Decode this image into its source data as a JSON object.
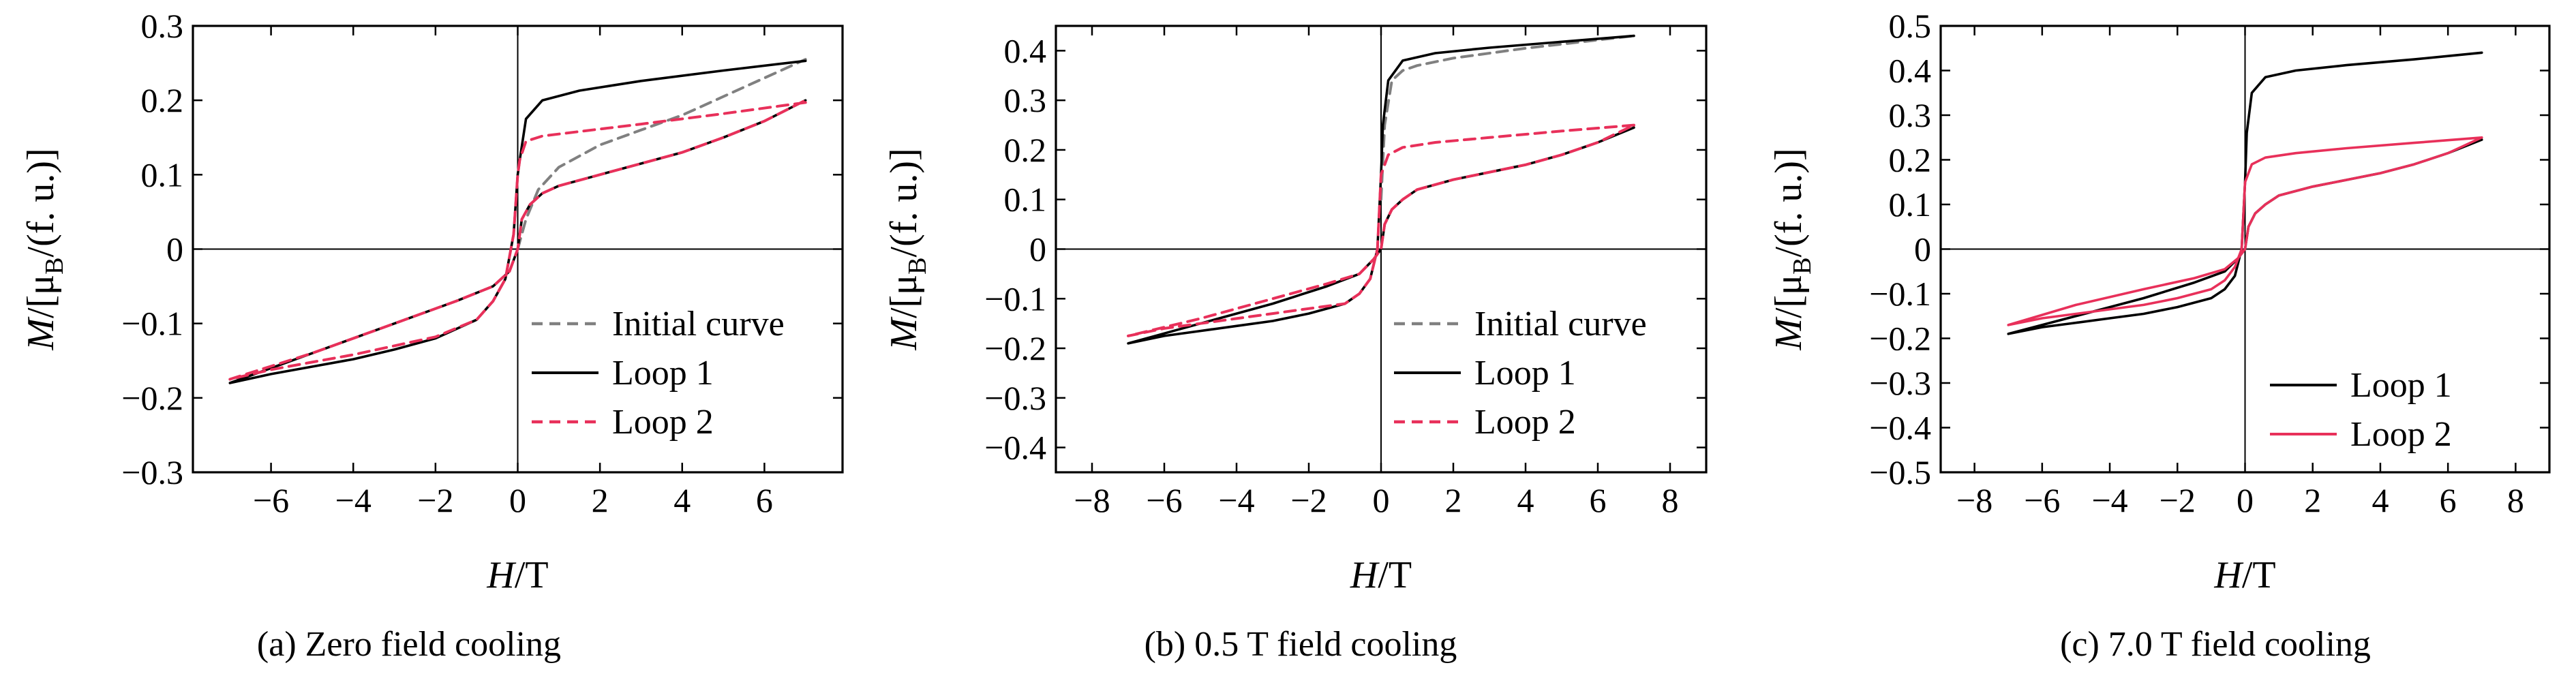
{
  "figure": {
    "colors": {
      "initial": "#808080",
      "loop1": "#000000",
      "loop2": "#e8305a"
    }
  },
  "chart_data": [
    {
      "type": "line",
      "caption": "(a) Zero field cooling",
      "xlabel_main": "H",
      "xlabel_unit": "/T",
      "ylabel_main": "M",
      "ylabel_unit": "/[μ",
      "ylabel_sub": "B",
      "ylabel_tail": "/(f. u.)]",
      "xlim": [
        -7.9,
        7.9
      ],
      "ylim": [
        -0.3,
        0.3
      ],
      "xticks": [
        -6,
        -4,
        -2,
        0,
        2,
        4,
        6
      ],
      "xtick_labels": [
        "−6",
        "−4",
        "−2",
        "0",
        "2",
        "4",
        "6"
      ],
      "yticks": [
        -0.3,
        -0.2,
        -0.1,
        0,
        0.1,
        0.2,
        0.3
      ],
      "ytick_labels": [
        "−0.3",
        "−0.2",
        "−0.1",
        "0",
        "0.1",
        "0.2",
        "0.3"
      ],
      "legend_position": "bottom-right",
      "legend_entries": [
        "Initial curve",
        "Loop 1",
        "Loop 2"
      ],
      "series": [
        {
          "name": "Initial curve",
          "style": "dashed",
          "color": "#808080",
          "x": [
            0,
            0.2,
            0.5,
            1,
            2,
            3,
            4,
            5,
            6,
            7
          ],
          "y": [
            0,
            0.04,
            0.08,
            0.11,
            0.14,
            0.16,
            0.18,
            0.205,
            0.23,
            0.255
          ]
        },
        {
          "name": "Loop 1",
          "style": "solid",
          "color": "#000000",
          "x": [
            7,
            5,
            3,
            1.5,
            0.6,
            0.2,
            0.05,
            0,
            -0.1,
            -0.3,
            -0.6,
            -1,
            -2,
            -3,
            -4,
            -5,
            -6,
            -7,
            -5,
            -3,
            -1.5,
            -0.6,
            -0.2,
            0,
            0.1,
            0.3,
            0.6,
            1,
            2,
            3,
            4,
            5,
            6,
            7
          ],
          "y": [
            0.253,
            0.24,
            0.226,
            0.213,
            0.2,
            0.175,
            0.12,
            0.1,
            0.02,
            -0.04,
            -0.07,
            -0.095,
            -0.12,
            -0.135,
            -0.148,
            -0.158,
            -0.168,
            -0.18,
            -0.14,
            -0.1,
            -0.07,
            -0.05,
            -0.03,
            0,
            0.04,
            0.06,
            0.075,
            0.085,
            0.1,
            0.115,
            0.13,
            0.15,
            0.172,
            0.2
          ]
        },
        {
          "name": "Loop 2",
          "style": "dashed",
          "color": "#e8305a",
          "x": [
            7,
            5,
            3,
            1.5,
            0.6,
            0.2,
            0.05,
            0,
            -0.1,
            -0.3,
            -0.6,
            -1,
            -2,
            -3,
            -4,
            -5,
            -6,
            -7,
            -5,
            -3,
            -1.5,
            -0.6,
            -0.2,
            0,
            0.1,
            0.3,
            0.6,
            1,
            2,
            3,
            4,
            5,
            6,
            7
          ],
          "y": [
            0.197,
            0.182,
            0.168,
            0.158,
            0.152,
            0.145,
            0.12,
            0.1,
            0.02,
            -0.04,
            -0.07,
            -0.095,
            -0.118,
            -0.13,
            -0.142,
            -0.152,
            -0.162,
            -0.175,
            -0.14,
            -0.1,
            -0.07,
            -0.05,
            -0.03,
            0,
            0.04,
            0.06,
            0.075,
            0.085,
            0.1,
            0.115,
            0.13,
            0.15,
            0.172,
            0.2
          ]
        }
      ]
    },
    {
      "type": "line",
      "caption": "(b) 0.5 T field cooling",
      "xlabel_main": "H",
      "xlabel_unit": "/T",
      "ylabel_main": "M",
      "ylabel_unit": "/[μ",
      "ylabel_sub": "B",
      "ylabel_tail": "/(f. u.)]",
      "xlim": [
        -9,
        9
      ],
      "ylim": [
        -0.45,
        0.45
      ],
      "xticks": [
        -8,
        -6,
        -4,
        -2,
        0,
        2,
        4,
        6,
        8
      ],
      "xtick_labels": [
        "−8",
        "−6",
        "−4",
        "−2",
        "0",
        "2",
        "4",
        "6",
        "8"
      ],
      "yticks": [
        -0.4,
        -0.3,
        -0.2,
        -0.1,
        0,
        0.1,
        0.2,
        0.3,
        0.4
      ],
      "ytick_labels": [
        "−0.4",
        "−0.3",
        "−0.2",
        "−0.1",
        "0",
        "0.1",
        "0.2",
        "0.3",
        "0.4"
      ],
      "legend_position": "bottom-right",
      "legend_entries": [
        "Initial curve",
        "Loop 1",
        "Loop 2"
      ],
      "series": [
        {
          "name": "Initial curve",
          "style": "dashed",
          "color": "#808080",
          "x": [
            0,
            0.1,
            0.3,
            0.6,
            1,
            2,
            4,
            7
          ],
          "y": [
            0.1,
            0.25,
            0.34,
            0.36,
            0.37,
            0.385,
            0.405,
            0.43
          ]
        },
        {
          "name": "Loop 1",
          "style": "solid",
          "color": "#000000",
          "x": [
            7,
            5,
            3,
            1.5,
            0.6,
            0.2,
            0.05,
            0,
            -0.1,
            -0.3,
            -0.6,
            -1,
            -2,
            -3,
            -4,
            -5,
            -6,
            -7,
            -5,
            -3,
            -1.5,
            -0.6,
            -0.2,
            0,
            0.1,
            0.3,
            0.6,
            1,
            2,
            3,
            4,
            5,
            6,
            7
          ],
          "y": [
            0.43,
            0.418,
            0.406,
            0.395,
            0.38,
            0.34,
            0.25,
            0.15,
            0.0,
            -0.06,
            -0.09,
            -0.11,
            -0.13,
            -0.145,
            -0.155,
            -0.165,
            -0.175,
            -0.19,
            -0.15,
            -0.11,
            -0.075,
            -0.05,
            -0.02,
            0,
            0.05,
            0.08,
            0.1,
            0.12,
            0.14,
            0.155,
            0.17,
            0.19,
            0.215,
            0.245
          ]
        },
        {
          "name": "Loop 2",
          "style": "dashed",
          "color": "#e8305a",
          "x": [
            7,
            5,
            3,
            1.5,
            0.6,
            0.2,
            0.05,
            0,
            -0.1,
            -0.3,
            -0.6,
            -1,
            -2,
            -3,
            -4,
            -5,
            -6,
            -7,
            -5,
            -3,
            -1.5,
            -0.6,
            -0.2,
            0,
            0.1,
            0.3,
            0.6,
            1,
            2,
            3,
            4,
            5,
            6,
            7
          ],
          "y": [
            0.25,
            0.238,
            0.225,
            0.215,
            0.205,
            0.19,
            0.16,
            0.15,
            0.0,
            -0.06,
            -0.09,
            -0.11,
            -0.12,
            -0.13,
            -0.14,
            -0.15,
            -0.16,
            -0.175,
            -0.14,
            -0.1,
            -0.07,
            -0.05,
            -0.02,
            0,
            0.05,
            0.08,
            0.1,
            0.12,
            0.14,
            0.155,
            0.17,
            0.19,
            0.215,
            0.25
          ]
        }
      ]
    },
    {
      "type": "line",
      "caption": "(c) 7.0 T field cooling",
      "xlabel_main": "H",
      "xlabel_unit": "/T",
      "ylabel_main": "M",
      "ylabel_unit": "/[μ",
      "ylabel_sub": "B",
      "ylabel_tail": "/(f. u.)]",
      "xlim": [
        -9,
        9
      ],
      "ylim": [
        -0.5,
        0.5
      ],
      "xticks": [
        -8,
        -6,
        -4,
        -2,
        0,
        2,
        4,
        6,
        8
      ],
      "xtick_labels": [
        "−8",
        "−6",
        "−4",
        "−2",
        "0",
        "2",
        "4",
        "6",
        "8"
      ],
      "yticks": [
        -0.5,
        -0.4,
        -0.3,
        -0.2,
        -0.1,
        0,
        0.1,
        0.2,
        0.3,
        0.4,
        0.5
      ],
      "ytick_labels": [
        "−0.5",
        "−0.4",
        "−0.3",
        "−0.2",
        "−0.1",
        "0",
        "0.1",
        "0.2",
        "0.3",
        "0.4",
        "0.5"
      ],
      "legend_position": "bottom-right",
      "legend_entries": [
        "Loop 1",
        "Loop 2"
      ],
      "series": [
        {
          "name": "Loop 1",
          "style": "solid",
          "color": "#000000",
          "x": [
            7,
            5,
            3,
            1.5,
            0.6,
            0.2,
            0.05,
            0,
            -0.1,
            -0.3,
            -0.6,
            -1,
            -2,
            -3,
            -4,
            -5,
            -6,
            -7,
            -5,
            -3,
            -1.5,
            -0.6,
            -0.2,
            0,
            0.1,
            0.3,
            0.6,
            1,
            2,
            3,
            4,
            5,
            6,
            7
          ],
          "y": [
            0.44,
            0.425,
            0.412,
            0.4,
            0.385,
            0.35,
            0.26,
            0.15,
            0.0,
            -0.06,
            -0.09,
            -0.11,
            -0.13,
            -0.145,
            -0.155,
            -0.165,
            -0.175,
            -0.19,
            -0.15,
            -0.11,
            -0.075,
            -0.05,
            -0.02,
            0,
            0.05,
            0.08,
            0.1,
            0.12,
            0.14,
            0.155,
            0.17,
            0.19,
            0.215,
            0.245
          ]
        },
        {
          "name": "Loop 2",
          "style": "solid",
          "color": "#e8305a",
          "x": [
            7,
            5,
            3,
            1.5,
            0.6,
            0.2,
            0.05,
            0,
            -0.1,
            -0.3,
            -0.6,
            -1,
            -2,
            -3,
            -4,
            -5,
            -6,
            -7,
            -5,
            -3,
            -1.5,
            -0.6,
            -0.2,
            0,
            0.1,
            0.3,
            0.6,
            1,
            2,
            3,
            4,
            5,
            6,
            7
          ],
          "y": [
            0.25,
            0.238,
            0.226,
            0.215,
            0.205,
            0.19,
            0.16,
            0.15,
            0.0,
            -0.04,
            -0.07,
            -0.09,
            -0.11,
            -0.125,
            -0.135,
            -0.145,
            -0.155,
            -0.17,
            -0.125,
            -0.09,
            -0.065,
            -0.045,
            -0.02,
            0,
            0.05,
            0.08,
            0.1,
            0.12,
            0.14,
            0.155,
            0.17,
            0.19,
            0.215,
            0.25
          ]
        }
      ]
    }
  ]
}
